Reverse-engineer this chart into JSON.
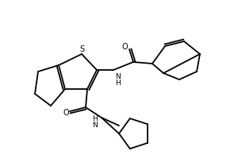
{
  "bg_color": "#ffffff",
  "line_width": 1.3,
  "figsize": [
    3.0,
    2.0
  ],
  "dpi": 100,
  "S_label": "S",
  "O1_label": "O",
  "O2_label": "O",
  "NH1_label": "N\nH",
  "NH2_label": "H\nN"
}
